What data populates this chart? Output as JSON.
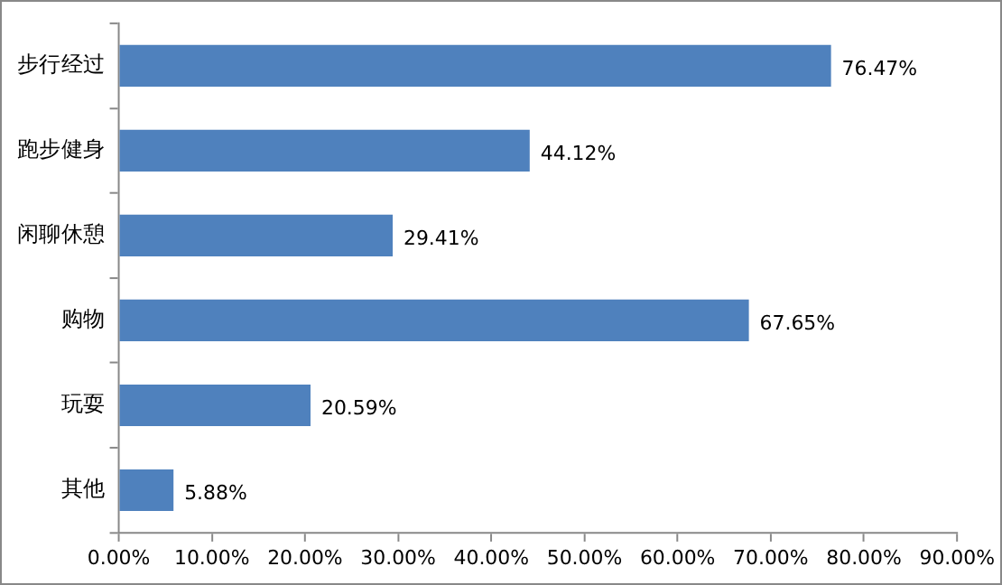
{
  "chart_data": {
    "type": "bar",
    "orientation": "horizontal",
    "categories": [
      "步行经过",
      "跑步健身",
      "闲聊休憩",
      "购物",
      "玩耍",
      "其他"
    ],
    "values": [
      76.47,
      44.12,
      29.41,
      67.65,
      20.59,
      5.88
    ],
    "value_labels": [
      "76.47%",
      "44.12%",
      "29.41%",
      "67.65%",
      "20.59%",
      "5.88%"
    ],
    "color": "#4f81bd",
    "xlim": [
      0,
      90
    ],
    "xticks": [
      {
        "value": 0,
        "label": "0.00%"
      },
      {
        "value": 10,
        "label": "10.00%"
      },
      {
        "value": 20,
        "label": "20.00%"
      },
      {
        "value": 30,
        "label": "30.00%"
      },
      {
        "value": 40,
        "label": "40.00%"
      },
      {
        "value": 50,
        "label": "50.00%"
      },
      {
        "value": 60,
        "label": "60.00%"
      },
      {
        "value": 70,
        "label": "70.00%"
      },
      {
        "value": 80,
        "label": "80.00%"
      },
      {
        "value": 90,
        "label": "90.00%"
      }
    ],
    "grid": false,
    "legend": false
  }
}
